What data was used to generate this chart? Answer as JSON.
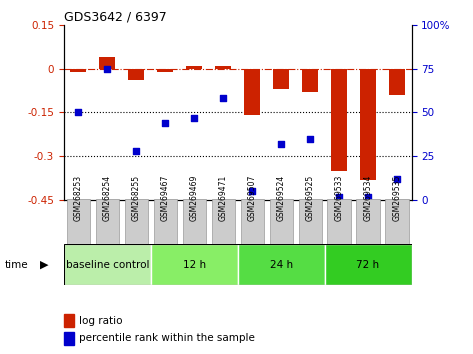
{
  "title": "GDS3642 / 6397",
  "samples": [
    "GSM268253",
    "GSM268254",
    "GSM268255",
    "GSM269467",
    "GSM269469",
    "GSM269471",
    "GSM269507",
    "GSM269524",
    "GSM269525",
    "GSM269533",
    "GSM269534",
    "GSM269535"
  ],
  "log_ratio": [
    -0.01,
    0.04,
    -0.04,
    -0.01,
    0.01,
    0.01,
    -0.16,
    -0.07,
    -0.08,
    -0.35,
    -0.38,
    -0.09
  ],
  "percentile_rank": [
    50,
    75,
    28,
    44,
    47,
    58,
    5,
    32,
    35,
    2,
    2,
    12
  ],
  "bar_color": "#cc2200",
  "dot_color": "#0000cc",
  "ylim_left": [
    -0.45,
    0.15
  ],
  "ylim_right": [
    0,
    100
  ],
  "yticks_left": [
    0.15,
    0.0,
    -0.15,
    -0.3,
    -0.45
  ],
  "yticks_left_labels": [
    "0.15",
    "0",
    "-0.15",
    "-0.3",
    "-0.45"
  ],
  "yticks_right": [
    100,
    75,
    50,
    25,
    0
  ],
  "yticks_right_labels": [
    "100%",
    "75",
    "50",
    "25",
    "0"
  ],
  "hlines": [
    0.0,
    -0.15,
    -0.3
  ],
  "hline_styles": [
    "dashdot",
    "dotted",
    "dotted"
  ],
  "hline_colors": [
    "#cc2200",
    "black",
    "black"
  ],
  "groups": [
    {
      "label": "baseline control",
      "start": 0,
      "end": 3,
      "color": "#bbeeaa"
    },
    {
      "label": "12 h",
      "start": 3,
      "end": 6,
      "color": "#88ee66"
    },
    {
      "label": "24 h",
      "start": 6,
      "end": 9,
      "color": "#55dd44"
    },
    {
      "label": "72 h",
      "start": 9,
      "end": 12,
      "color": "#33cc22"
    }
  ],
  "time_label": "time",
  "legend_bar_label": "log ratio",
  "legend_dot_label": "percentile rank within the sample",
  "bg_color": "#ffffff",
  "bar_width": 0.55,
  "sample_box_color": "#cccccc",
  "sample_box_edge": "#999999"
}
